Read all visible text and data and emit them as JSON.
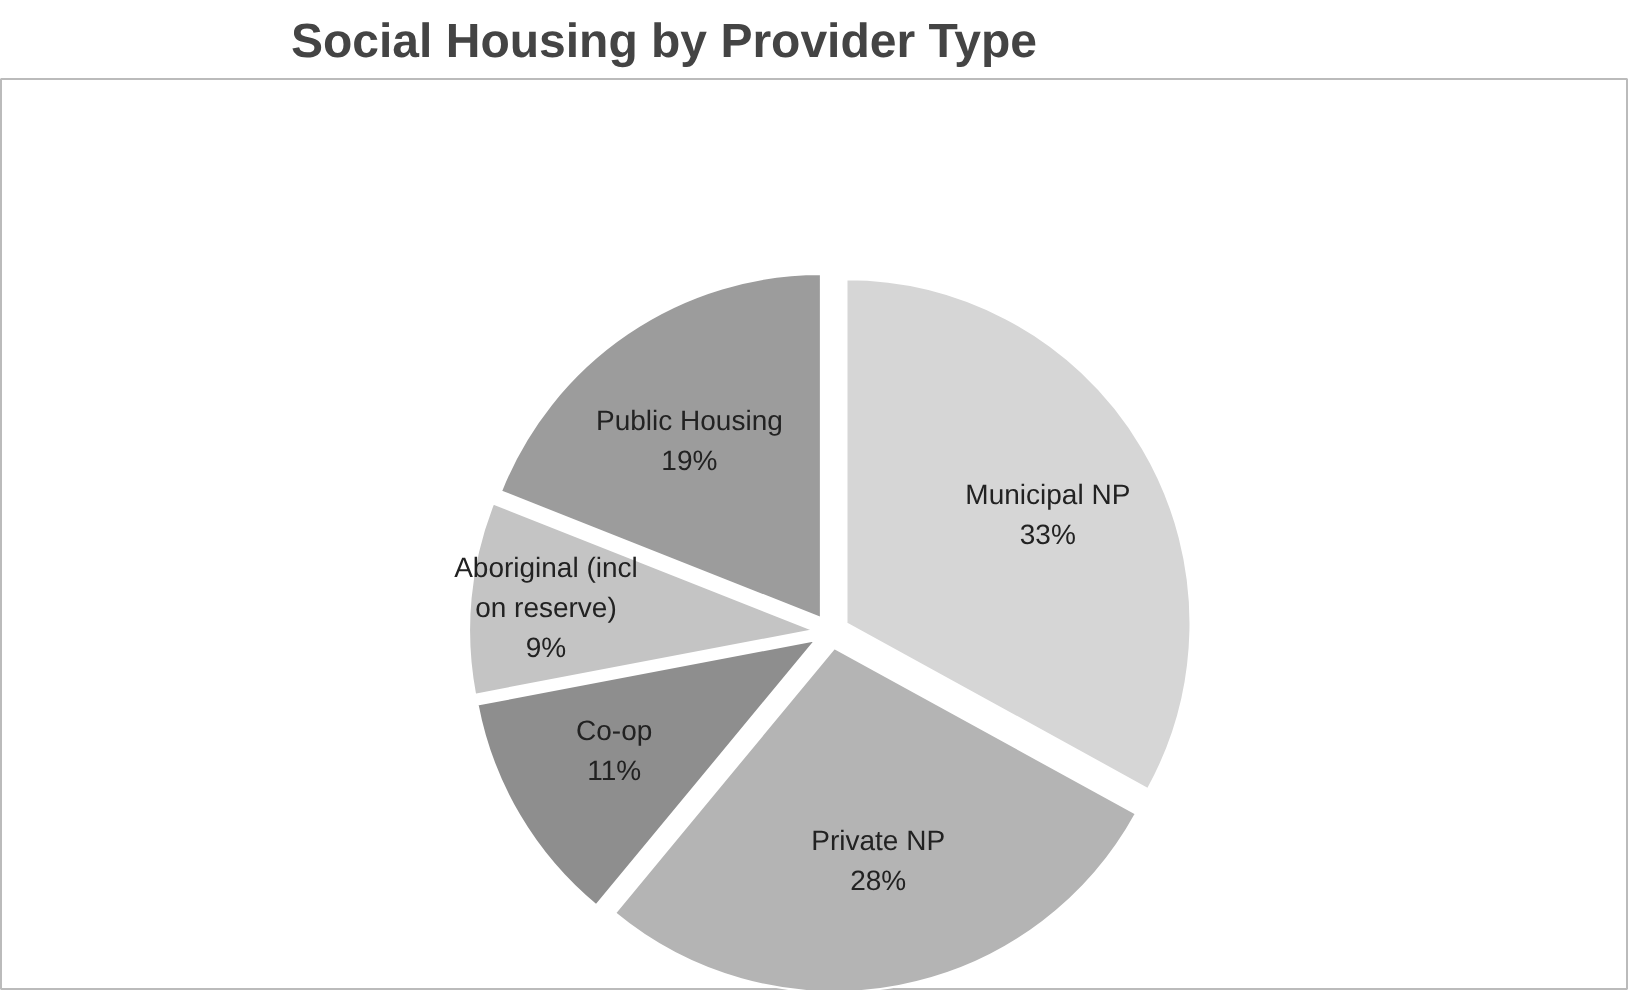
{
  "chart_data": {
    "type": "pie",
    "title": "Social Housing by Provider Type",
    "categories": [
      "Municipal NP",
      "Private NP",
      "Co-op",
      "Aboriginal (incl on reserve)",
      "Public Housing"
    ],
    "values": [
      33,
      28,
      11,
      9,
      19
    ],
    "value_labels": [
      "33%",
      "28%",
      "11%",
      "9%",
      "19%"
    ],
    "colors": [
      "#d6d6d6",
      "#b4b4b4",
      "#8e8e8e",
      "#c4c4c4",
      "#9c9c9c"
    ]
  }
}
